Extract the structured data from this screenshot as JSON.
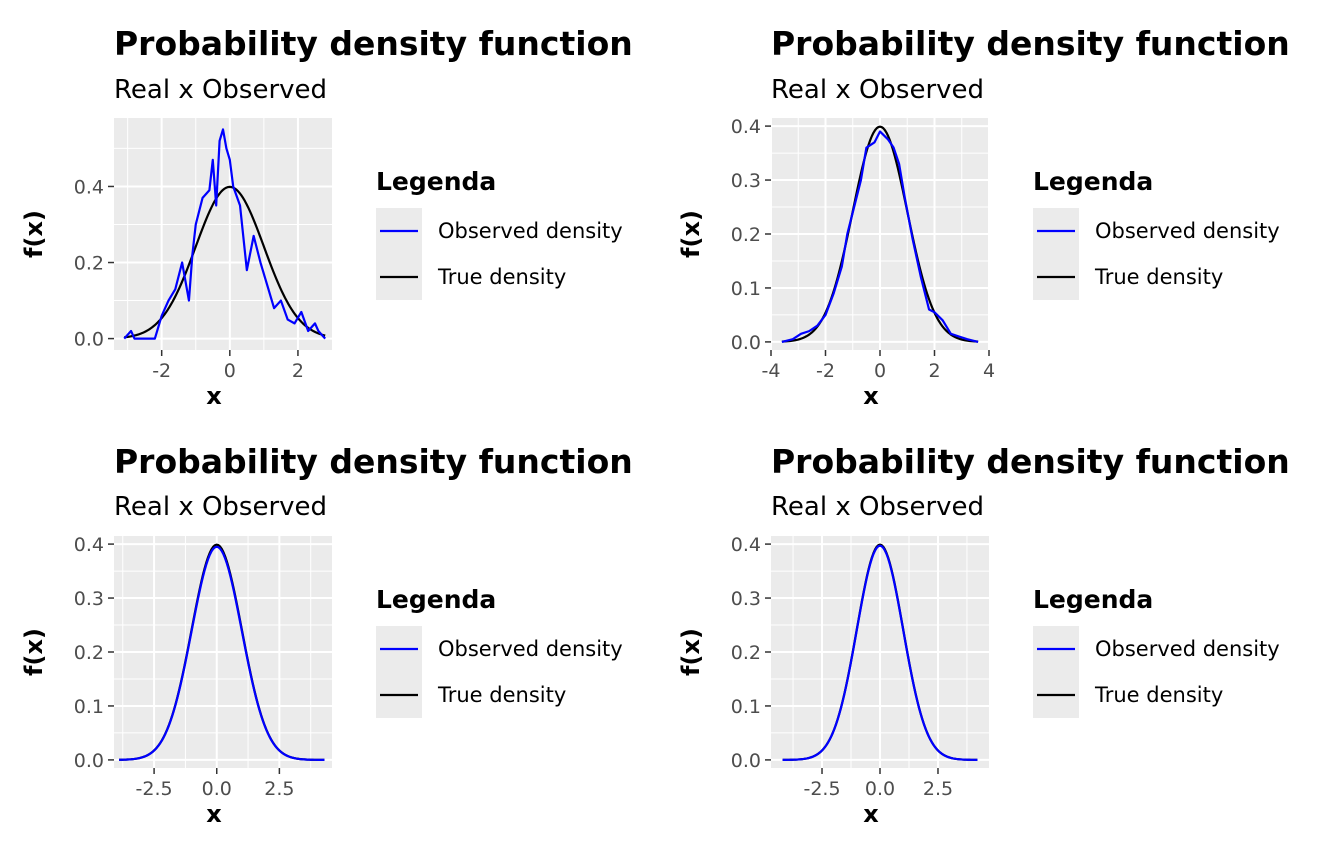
{
  "colors": {
    "observed": "#0000ff",
    "true": "#000000",
    "panel_bg": "#ebebeb",
    "grid": "#ffffff",
    "tick_text": "#4d4d4d"
  },
  "chart_data": [
    {
      "type": "line",
      "title": "Probability density function",
      "subtitle": "Real x Observed",
      "xlabel": "x",
      "ylabel": "f(x)",
      "xlim": [
        -3.4,
        3.0
      ],
      "ylim": [
        -0.03,
        0.58
      ],
      "xticks": [
        -2,
        0,
        2
      ],
      "xtick_labels": [
        "-2",
        "0",
        "2"
      ],
      "yticks": [
        0,
        0.2,
        0.4
      ],
      "ytick_labels": [
        "0.0",
        "0.2",
        "0.4"
      ],
      "grid": true,
      "legend": {
        "title": "Legenda",
        "position": "right",
        "entries": [
          "Observed density",
          "True density"
        ]
      },
      "series": [
        {
          "name": "Observed density",
          "color": "#0000ff",
          "x": [
            -3.1,
            -2.9,
            -2.8,
            -2.6,
            -2.4,
            -2.3,
            -2.2,
            -2.0,
            -1.8,
            -1.6,
            -1.4,
            -1.2,
            -1.1,
            -1.0,
            -0.8,
            -0.6,
            -0.5,
            -0.4,
            -0.3,
            -0.2,
            -0.1,
            0.0,
            0.1,
            0.3,
            0.5,
            0.7,
            0.9,
            1.1,
            1.3,
            1.5,
            1.7,
            1.9,
            2.1,
            2.3,
            2.5,
            2.6,
            2.8
          ],
          "y": [
            0.0,
            0.02,
            0.0,
            0.0,
            0.0,
            0.0,
            0.0,
            0.06,
            0.1,
            0.13,
            0.2,
            0.1,
            0.22,
            0.3,
            0.37,
            0.39,
            0.47,
            0.35,
            0.52,
            0.55,
            0.5,
            0.47,
            0.4,
            0.35,
            0.18,
            0.27,
            0.2,
            0.14,
            0.08,
            0.1,
            0.05,
            0.04,
            0.07,
            0.02,
            0.04,
            0.02,
            0.0
          ]
        },
        {
          "name": "True density",
          "color": "#000000",
          "fn": "normal",
          "range": [
            -3.1,
            2.8
          ]
        }
      ]
    },
    {
      "type": "line",
      "title": "Probability density function",
      "subtitle": "Real x Observed",
      "xlabel": "x",
      "ylabel": "f(x)",
      "xlim": [
        -4.0,
        4.0
      ],
      "ylim": [
        -0.015,
        0.415
      ],
      "xticks": [
        -4,
        -2,
        0,
        2,
        4
      ],
      "xtick_labels": [
        "-4",
        "-2",
        "0",
        "2",
        "4"
      ],
      "yticks": [
        0,
        0.1,
        0.2,
        0.3,
        0.4
      ],
      "ytick_labels": [
        "0.0",
        "0.1",
        "0.2",
        "0.3",
        "0.4"
      ],
      "grid": true,
      "legend": {
        "title": "Legenda",
        "position": "right",
        "entries": [
          "Observed density",
          "True density"
        ]
      },
      "series": [
        {
          "name": "Observed density",
          "color": "#0000ff",
          "x": [
            -3.6,
            -3.2,
            -2.9,
            -2.6,
            -2.3,
            -2.0,
            -1.7,
            -1.4,
            -1.2,
            -1.0,
            -0.7,
            -0.5,
            -0.2,
            0.0,
            0.1,
            0.3,
            0.5,
            0.7,
            0.9,
            1.2,
            1.5,
            1.8,
            2.0,
            2.3,
            2.6,
            2.9,
            3.2,
            3.6
          ],
          "y": [
            0.0,
            0.005,
            0.015,
            0.02,
            0.03,
            0.05,
            0.09,
            0.14,
            0.2,
            0.24,
            0.3,
            0.36,
            0.37,
            0.39,
            0.385,
            0.375,
            0.36,
            0.33,
            0.27,
            0.19,
            0.12,
            0.06,
            0.055,
            0.04,
            0.015,
            0.01,
            0.005,
            0.0
          ]
        },
        {
          "name": "True density",
          "color": "#000000",
          "fn": "normal",
          "range": [
            -3.6,
            3.6
          ]
        }
      ]
    },
    {
      "type": "line",
      "title": "Probability density function",
      "subtitle": "Real x Observed",
      "xlabel": "x",
      "ylabel": "f(x)",
      "xlim": [
        -4.1,
        4.6
      ],
      "ylim": [
        -0.015,
        0.415
      ],
      "xticks": [
        -2.5,
        0,
        2.5
      ],
      "xtick_labels": [
        "-2.5",
        "0.0",
        "2.5"
      ],
      "yticks": [
        0,
        0.1,
        0.2,
        0.3,
        0.4
      ],
      "ytick_labels": [
        "0.0",
        "0.1",
        "0.2",
        "0.3",
        "0.4"
      ],
      "grid": true,
      "legend": {
        "title": "Legenda",
        "position": "right",
        "entries": [
          "Observed density",
          "True density"
        ]
      },
      "series": [
        {
          "name": "Observed density",
          "color": "#0000ff",
          "fn": "normal_obs",
          "range": [
            -3.9,
            4.3
          ],
          "peak": 0.395
        },
        {
          "name": "True density",
          "color": "#000000",
          "fn": "normal",
          "range": [
            -3.9,
            4.3
          ]
        }
      ]
    },
    {
      "type": "line",
      "title": "Probability density function",
      "subtitle": "Real x Observed",
      "xlabel": "x",
      "ylabel": "f(x)",
      "xlim": [
        -4.7,
        4.7
      ],
      "ylim": [
        -0.015,
        0.415
      ],
      "xticks": [
        -2.5,
        0,
        2.5
      ],
      "xtick_labels": [
        "-2.5",
        "0.0",
        "2.5"
      ],
      "yticks": [
        0,
        0.1,
        0.2,
        0.3,
        0.4
      ],
      "ytick_labels": [
        "0.0",
        "0.1",
        "0.2",
        "0.3",
        "0.4"
      ],
      "grid": true,
      "legend": {
        "title": "Legenda",
        "position": "right",
        "entries": [
          "Observed density",
          "True density"
        ]
      },
      "series": [
        {
          "name": "Observed density",
          "color": "#0000ff",
          "fn": "normal_obs",
          "range": [
            -4.2,
            4.2
          ],
          "peak": 0.397
        },
        {
          "name": "True density",
          "color": "#000000",
          "fn": "normal",
          "range": [
            -4.2,
            4.2
          ]
        }
      ]
    }
  ]
}
